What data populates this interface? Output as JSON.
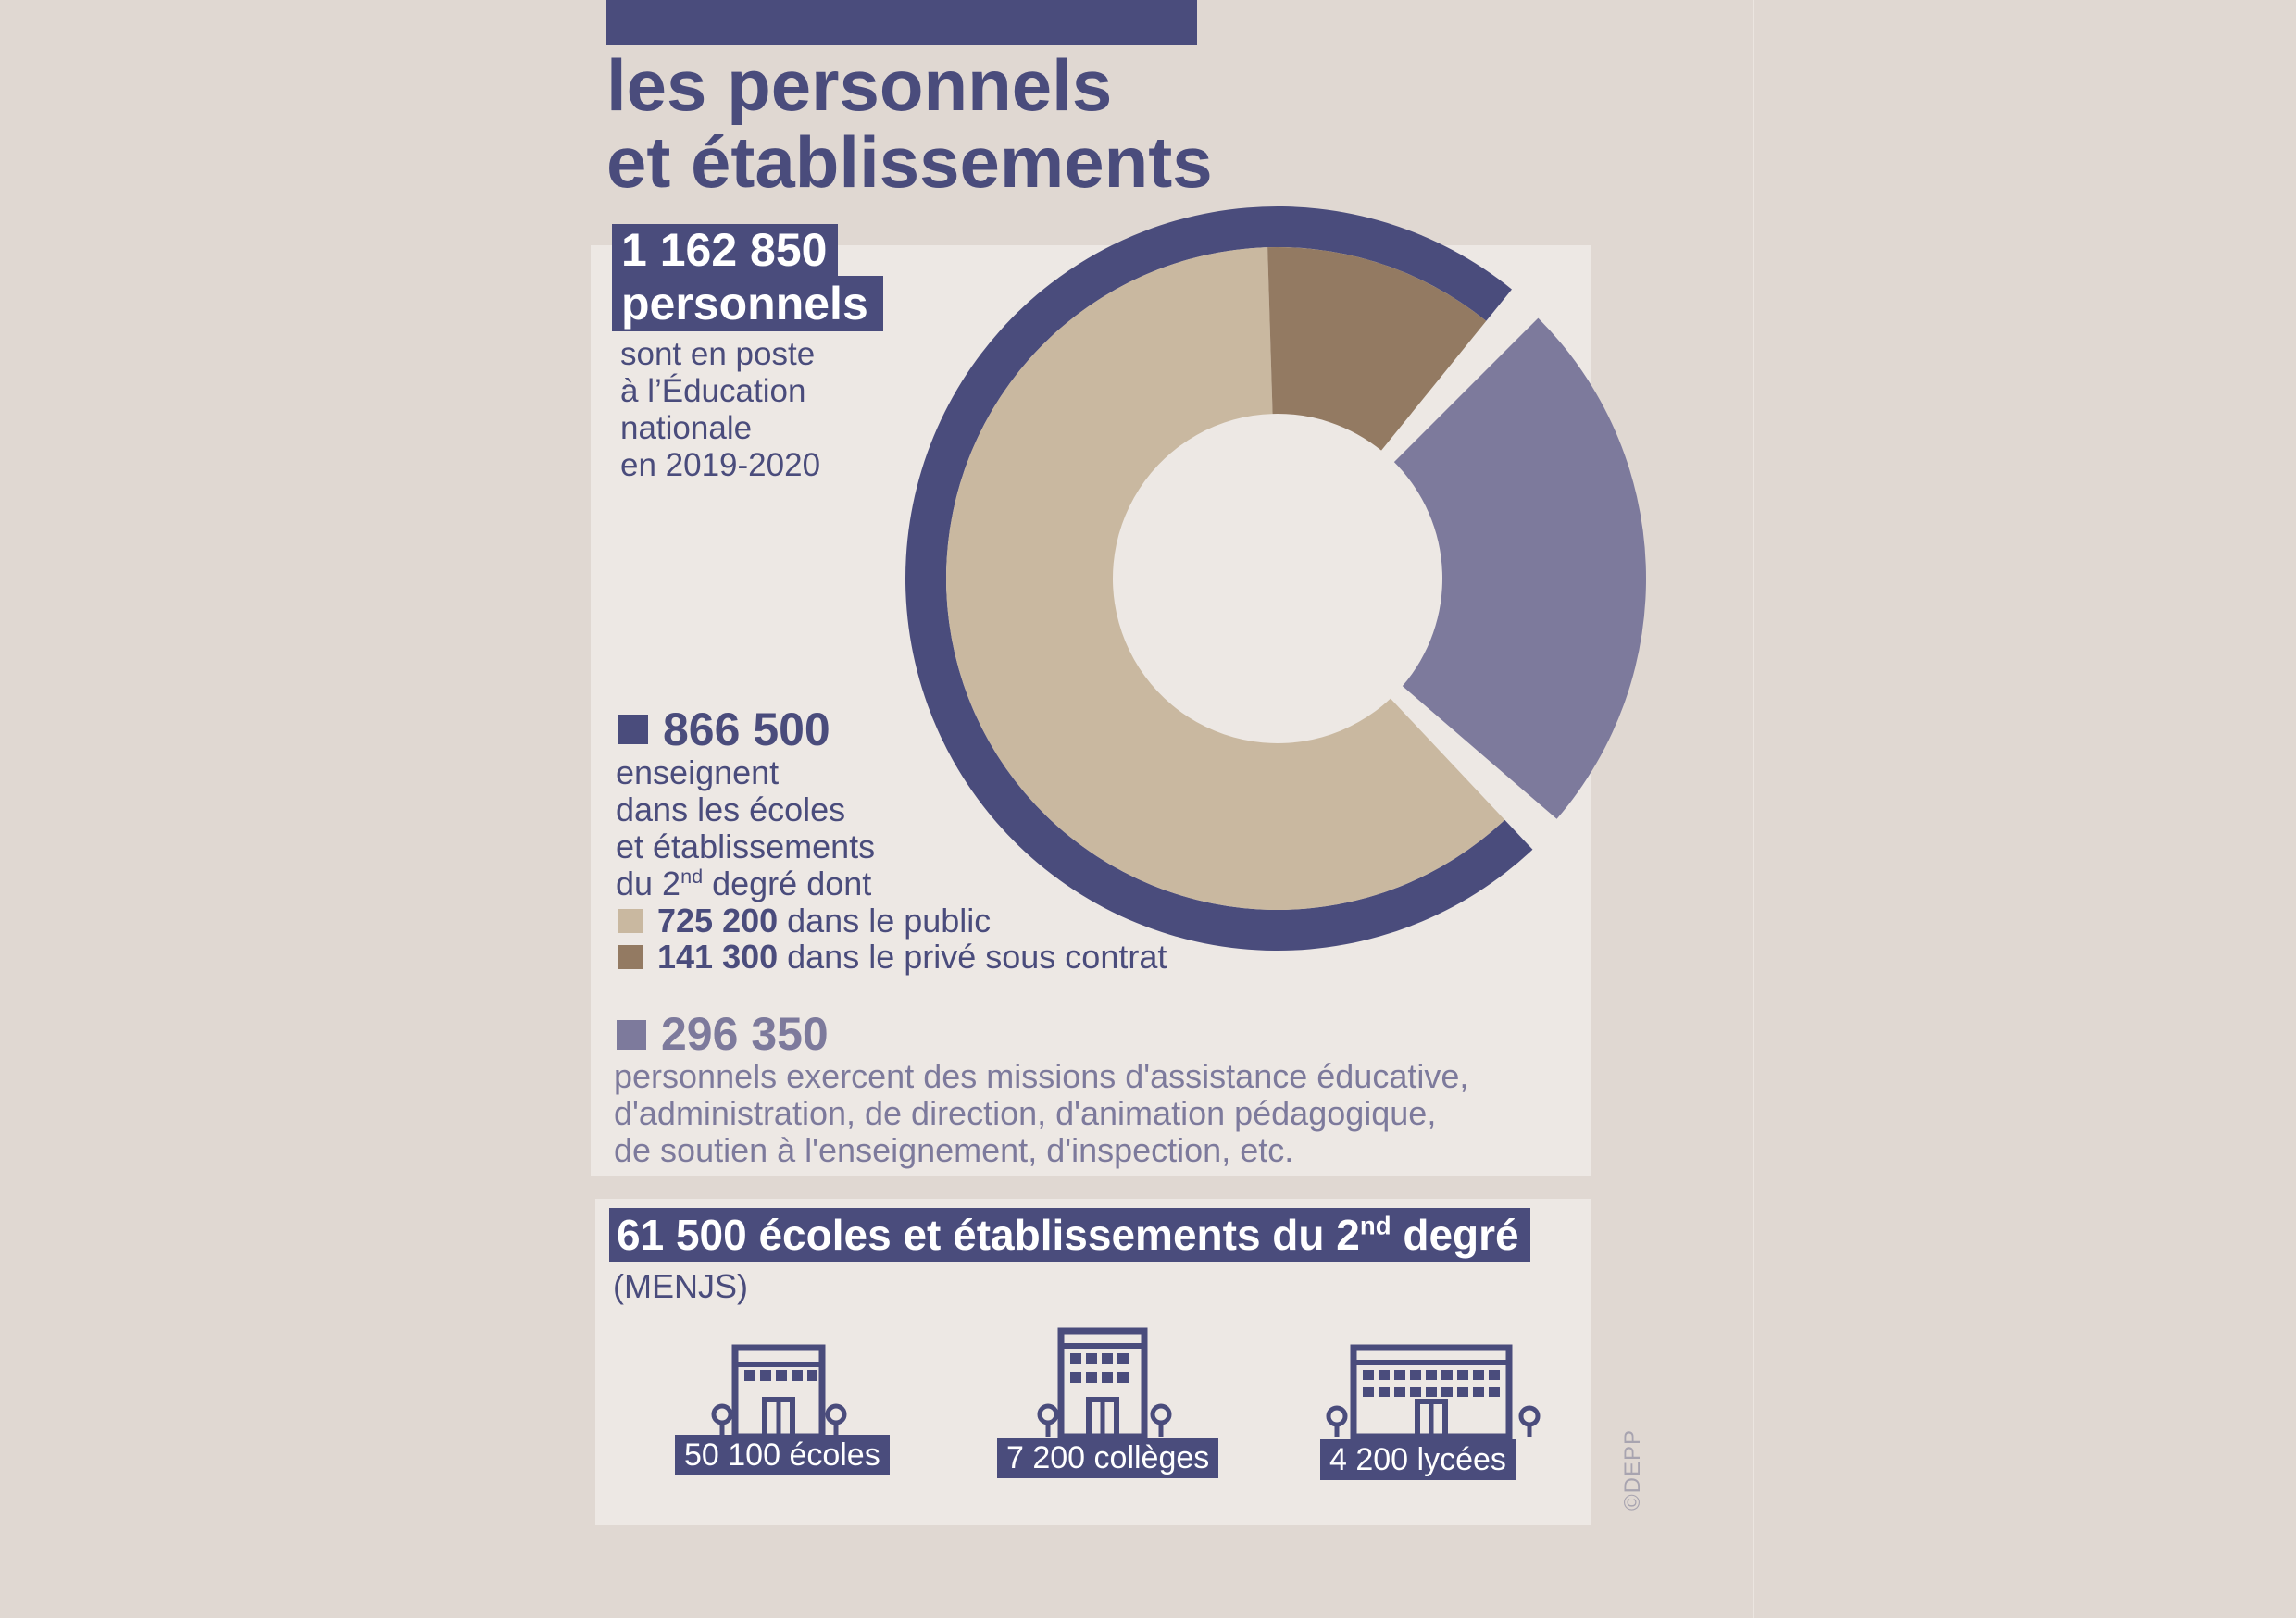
{
  "title": {
    "line1": "les personnels",
    "line2": "et établissements"
  },
  "total": {
    "number": "1 162 850",
    "unit": "personnels",
    "description": [
      "sont en poste",
      "à l’Éducation",
      "nationale",
      "en 2019-2020"
    ]
  },
  "teachers": {
    "number": "866 500",
    "description_lines": [
      "enseignent",
      "dans les écoles",
      "et établissements"
    ],
    "degree_prefix": "du 2",
    "degree_sup": "nd",
    "degree_suffix": " degré dont",
    "public": {
      "number": "725 200",
      "label": " dans le public"
    },
    "private": {
      "number": "141 300",
      "label": " dans le privé sous contrat"
    }
  },
  "other_staff": {
    "number": "296 350",
    "description_lines": [
      "personnels exercent des missions d'assistance éducative,",
      "d'administration, de direction, d'animation pédagogique,",
      "de soutien à l'enseignement, d'inspection, etc."
    ]
  },
  "establishments": {
    "heading_prefix": "61 500 écoles et établissements du 2",
    "heading_sup": "nd",
    "heading_suffix": " degré",
    "source": "(MENJS)",
    "items": [
      {
        "label": "50 100 écoles",
        "icon": "school-building-icon"
      },
      {
        "label": "7 200 collèges",
        "icon": "college-building-icon"
      },
      {
        "label": "4 200 lycées",
        "icon": "lycee-building-icon"
      }
    ]
  },
  "credit": "©DEPP",
  "colors": {
    "teachers": "#4a4c7c",
    "public": "#c9b8a0",
    "private": "#937a62",
    "other": "#7d7a9c",
    "panel": "#ede8e4",
    "background": "#e0d8d2"
  },
  "chart_data": {
    "type": "pie",
    "style": "donut",
    "total": 1162850,
    "slices": [
      {
        "name": "725 200 dans le public",
        "value": 725200,
        "group": "866 500"
      },
      {
        "name": "141 300 dans le privé sous contrat",
        "value": 141300,
        "group": "866 500"
      },
      {
        "name": "296 350",
        "value": 296350,
        "group": "296 350"
      }
    ],
    "groups": [
      {
        "name": "866 500",
        "value": 866500
      },
      {
        "name": "296 350",
        "value": 296350
      }
    ]
  }
}
